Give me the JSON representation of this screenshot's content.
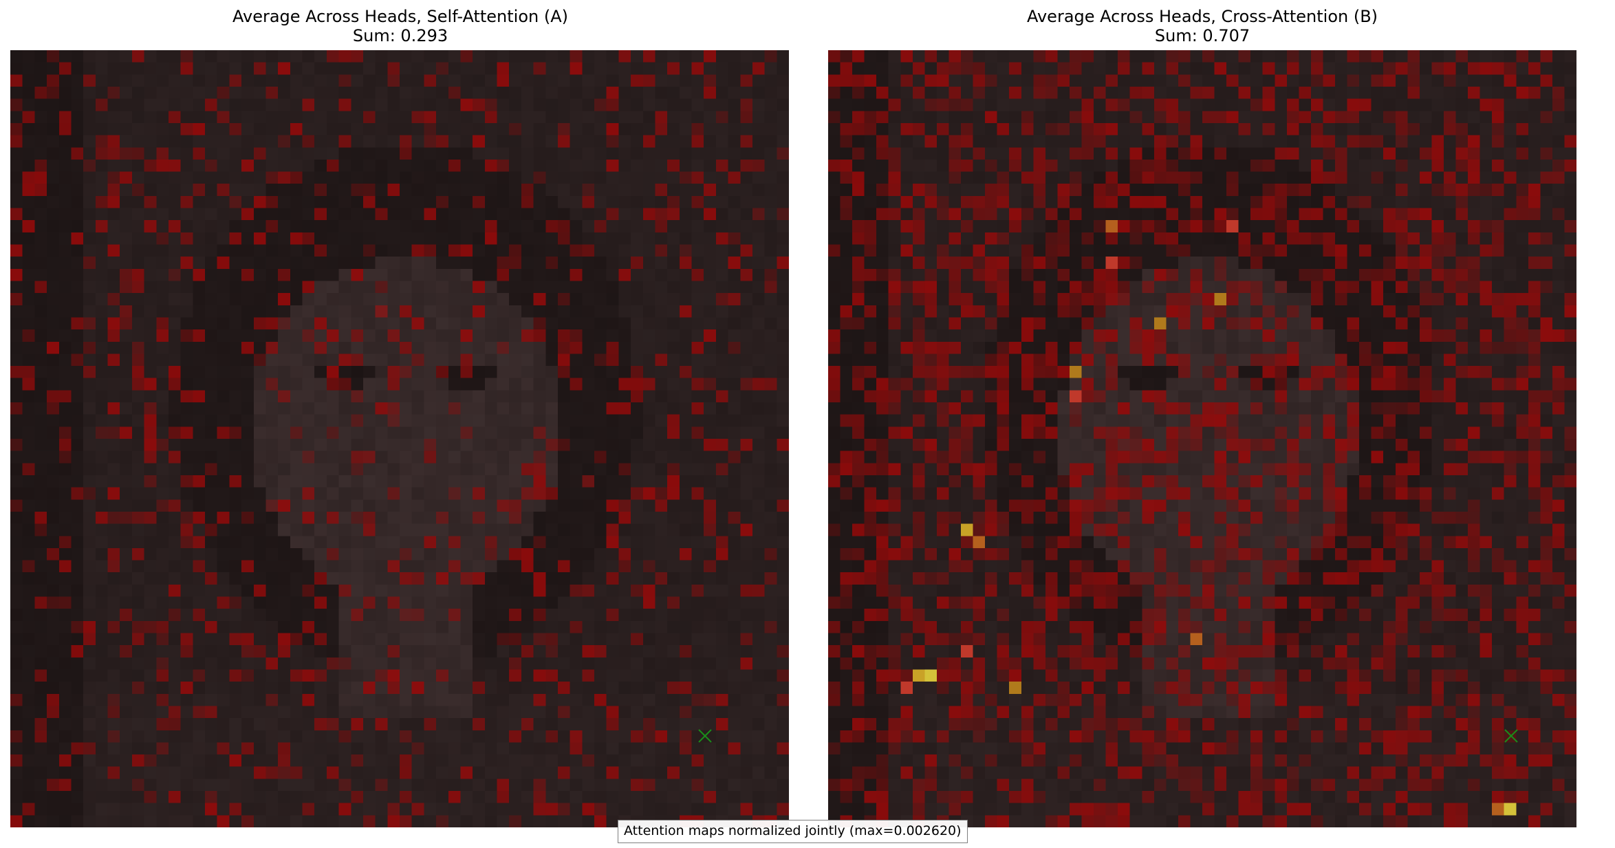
{
  "panels": [
    {
      "title": "Average Across Heads, Self-Attention (A)",
      "sum_label": "Sum: 0.293",
      "sum": 0.293,
      "marker_icon": "x-marker-icon",
      "marker_color": "#1a8c1a",
      "overlay_colormap": "hot"
    },
    {
      "title": "Average Across Heads, Cross-Attention (B)",
      "sum_label": "Sum: 0.707",
      "sum": 0.707,
      "marker_icon": "x-marker-icon",
      "marker_color": "#1a8c1a",
      "overlay_colormap": "hot"
    }
  ],
  "footer": {
    "note": "Attention maps normalized jointly (max=0.002620)",
    "max_value": 0.00262
  },
  "colors": {
    "background": "#ffffff",
    "base_image_tint": "#3a3232",
    "attention_high": "#c0392b",
    "attention_peak": "#d4c23a"
  }
}
